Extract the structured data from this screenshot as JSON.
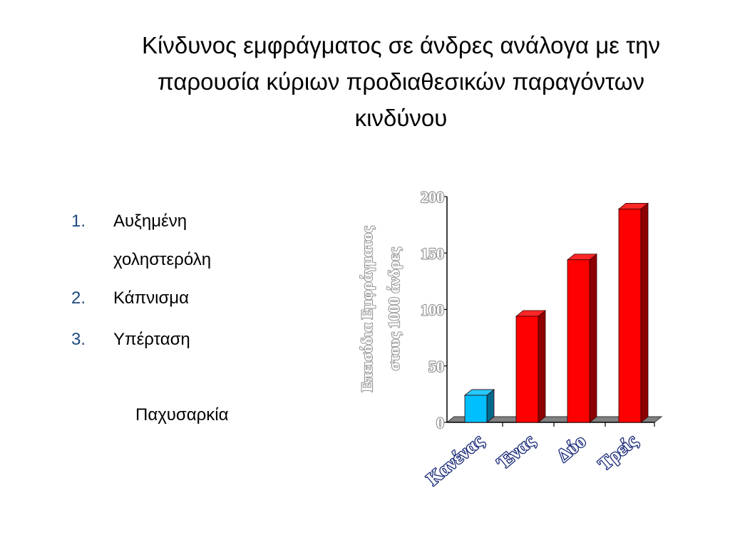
{
  "title_lines": [
    "Κίνδυνος εμφράγματος σε άνδρες ανάλογα με την",
    "παρουσία κύριων προδιαθεσικών παραγόντων",
    "κινδύνου"
  ],
  "list": [
    {
      "num": "1.",
      "lines": [
        "Αυξημένη",
        "χοληστερόλη"
      ]
    },
    {
      "num": "2.",
      "lines": [
        "Κάπνισμα"
      ]
    },
    {
      "num": "3.",
      "lines": [
        "Υπέρταση"
      ]
    }
  ],
  "extra_label": "Παχυσαρκία",
  "colors": {
    "list_number": "#1f497d",
    "bar_red": "#ff0000",
    "bar_blue": "#00bfff",
    "floor": "#808080"
  },
  "chart_data": {
    "type": "bar",
    "categories": [
      "Κανένας",
      "Ένας",
      "Δύο",
      "Τρείς"
    ],
    "values": [
      24,
      94,
      144,
      189
    ],
    "ylabel_lines": [
      "Επεισόδια Εμφράγματος",
      "στους 1000 άνδρες"
    ],
    "ylim": [
      0,
      200
    ],
    "yticks": [
      0,
      50,
      100,
      150,
      200
    ],
    "bar_colors": [
      "#00bfff",
      "#ff0000",
      "#ff0000",
      "#ff0000"
    ],
    "grid": false,
    "legend": "none",
    "style": "3d"
  }
}
